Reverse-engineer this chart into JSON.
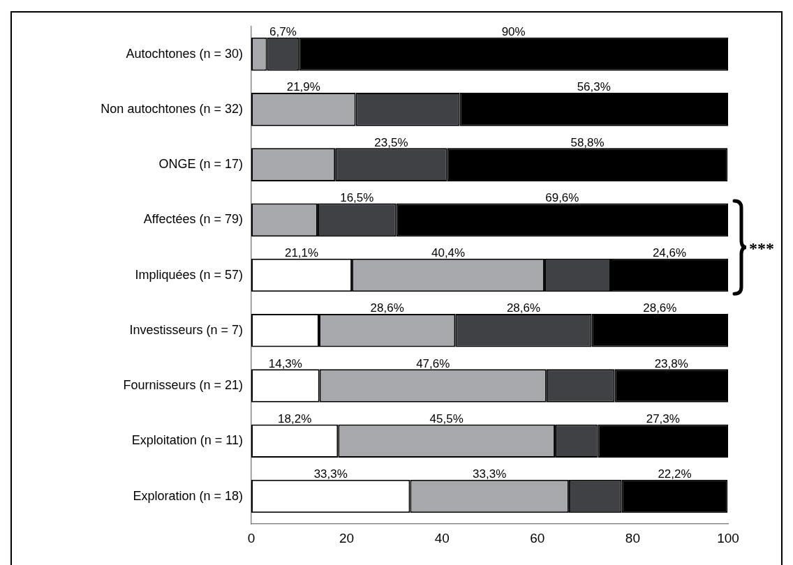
{
  "chart_data": {
    "type": "bar",
    "orientation": "horizontal",
    "stacked": true,
    "categories": [
      "Autochtones (n = 30)",
      "Non autochtones (n = 32)",
      "ONGE (n = 17)",
      "Affectées (n = 79)",
      "Impliquées (n = 57)",
      "Investisseurs (n = 7)",
      "Fournisseurs (n = 21)",
      "Exploitation (n = 11)",
      "Exploration (n = 18)"
    ],
    "series": [
      {
        "color": "#ffffff",
        "values": [
          0,
          0,
          0,
          0,
          21.1,
          14.2,
          14.3,
          18.2,
          33.3
        ],
        "value_labels": [
          null,
          null,
          null,
          null,
          "21,1%",
          null,
          "14,3%",
          "18,2%",
          "33,3%"
        ]
      },
      {
        "color": "#a7a8ac",
        "values": [
          3.3,
          21.9,
          17.6,
          13.9,
          40.4,
          28.6,
          47.6,
          45.5,
          33.3
        ],
        "value_labels": [
          null,
          "21,9%",
          null,
          null,
          "40,4%",
          "28,6%",
          "47,6%",
          "45,5%",
          "33,3%"
        ]
      },
      {
        "color": "#404145",
        "values": [
          6.7,
          21.8,
          23.5,
          16.5,
          13.9,
          28.6,
          14.3,
          9.0,
          11.1
        ],
        "value_labels": [
          "6,7%",
          null,
          "23,5%",
          "16,5%",
          null,
          "28,6%",
          null,
          null,
          null
        ]
      },
      {
        "color": "#000000",
        "values": [
          90,
          56.3,
          58.8,
          69.6,
          24.6,
          28.6,
          23.8,
          27.3,
          22.2
        ],
        "value_labels": [
          "90%",
          "56,3%",
          "58,8%",
          "69,6%",
          "24,6%",
          "28,6%",
          "23,8%",
          "27,3%",
          "22,2%"
        ]
      }
    ],
    "xlim": [
      0,
      100
    ],
    "xticks": [
      0,
      20,
      40,
      60,
      80,
      100
    ],
    "grid": false,
    "legend": false,
    "annotations": [
      "***"
    ]
  }
}
